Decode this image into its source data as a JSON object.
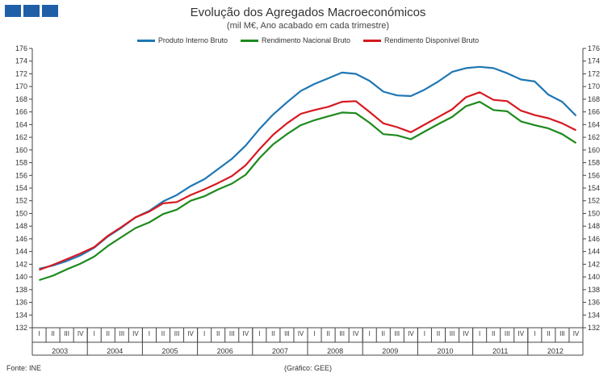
{
  "header": {
    "logo_squares": [
      "logo-square",
      "logo-square",
      "logo-square"
    ],
    "title": "Evolução dos Agregados Macroeconómicos",
    "subtitle": "(mil M€, Ano acabado em cada trimestre)"
  },
  "footer": {
    "source": "Fonte: INE",
    "credit": "(Gráfico: GEE)"
  },
  "colors": {
    "pib": "#1f77b4",
    "rnb": "#1d8a1d",
    "rdb": "#d71920",
    "logo": "#1f5fa8"
  },
  "chart_data": {
    "type": "line",
    "title": "Evolução dos Agregados Macroeconómicos",
    "subtitle": "(mil M€, Ano acabado em cada trimestre)",
    "xlabel": "",
    "ylabel": "",
    "ylim": [
      132,
      176
    ],
    "ytick_step": 2,
    "yticks_both_sides": true,
    "grid": false,
    "legend_position": "top-center",
    "quarter_labels": [
      "I",
      "II",
      "III",
      "IV"
    ],
    "years": [
      "2003",
      "2004",
      "2005",
      "2006",
      "2007",
      "2008",
      "2009",
      "2010",
      "2011",
      "2012"
    ],
    "series": [
      {
        "name": "Produto Interno Bruto",
        "color": "#1f77b4",
        "values": [
          141.3,
          141.8,
          142.5,
          143.4,
          144.6,
          146.4,
          147.8,
          149.4,
          150.4,
          151.9,
          152.9,
          154.3,
          155.4,
          157.0,
          158.6,
          160.7,
          163.3,
          165.6,
          167.5,
          169.3,
          170.4,
          171.3,
          172.2,
          172.0,
          170.9,
          169.2,
          168.6,
          168.5,
          169.5,
          170.8,
          172.3,
          172.9,
          173.1,
          172.9,
          172.1,
          171.1,
          170.8,
          168.7,
          167.6,
          165.4
        ]
      },
      {
        "name": "Rendimento Nacional Bruto",
        "color": "#1d8a1d",
        "values": [
          139.5,
          140.2,
          141.2,
          142.1,
          143.2,
          144.9,
          146.3,
          147.7,
          148.6,
          149.9,
          150.6,
          152.0,
          152.7,
          153.8,
          154.7,
          156.1,
          158.7,
          160.9,
          162.5,
          163.9,
          164.7,
          165.3,
          165.9,
          165.8,
          164.3,
          162.5,
          162.3,
          161.7,
          162.9,
          164.1,
          165.2,
          166.9,
          167.6,
          166.3,
          166.1,
          164.5,
          163.9,
          163.4,
          162.5,
          161.1
        ]
      },
      {
        "name": "Rendimento Disponível Bruto",
        "color": "#d71920",
        "values": [
          141.1,
          141.9,
          142.8,
          143.7,
          144.7,
          146.5,
          147.9,
          149.4,
          150.3,
          151.6,
          151.8,
          152.9,
          153.8,
          154.8,
          155.9,
          157.6,
          160.1,
          162.4,
          164.2,
          165.7,
          166.3,
          166.8,
          167.6,
          167.7,
          166.0,
          164.2,
          163.6,
          162.8,
          164.0,
          165.2,
          166.4,
          168.3,
          169.1,
          167.9,
          167.7,
          166.2,
          165.5,
          165.0,
          164.2,
          163.1
        ]
      }
    ]
  }
}
